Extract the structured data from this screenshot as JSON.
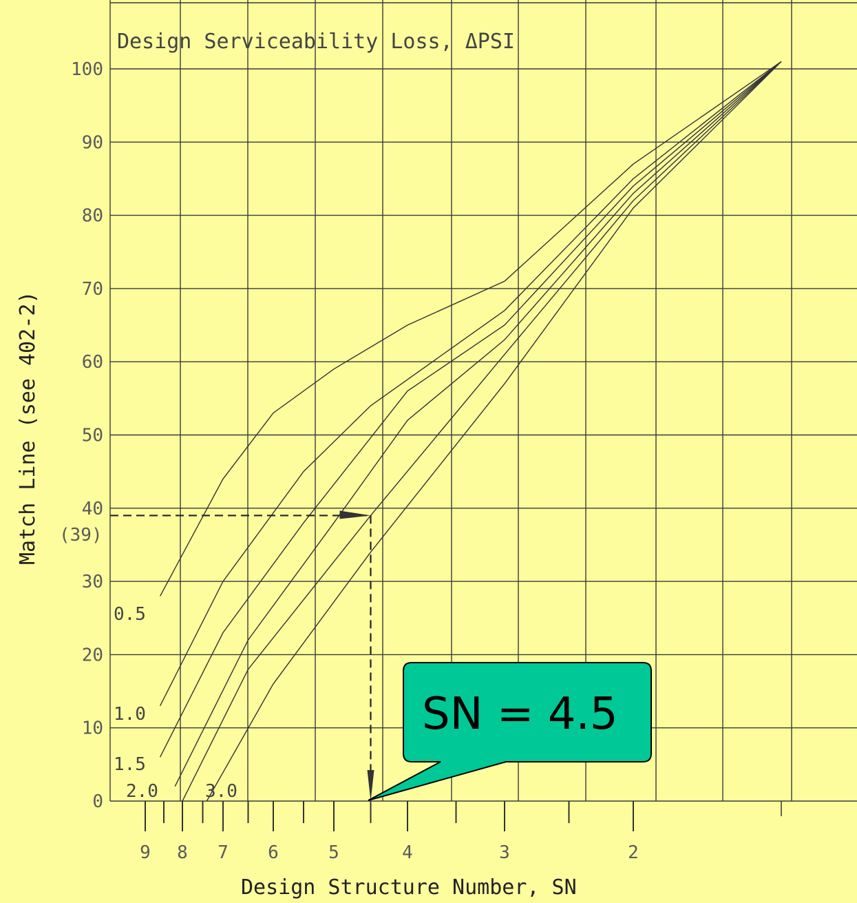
{
  "chart_data": {
    "type": "line",
    "title": "Design Serviceability Loss, ΔPSI",
    "xlabel": "Design Structure Number, SN",
    "ylabel": "Match Line (see 402-2)",
    "ylim": [
      0,
      100
    ],
    "y_ticks": [
      "0",
      "10",
      "20",
      "30",
      "40",
      "50",
      "60",
      "70",
      "80",
      "90",
      "100"
    ],
    "y_extra_label": "(39)",
    "x_ticks": [
      "9",
      "8",
      "7",
      "6",
      "5",
      "4",
      "3",
      "2"
    ],
    "x_tick_values": [
      9,
      8,
      7,
      6,
      5,
      4,
      3,
      2
    ],
    "series": [
      {
        "name": "0.5",
        "points": [
          [
            8.6,
            28
          ],
          [
            7.0,
            44
          ],
          [
            6.0,
            53
          ],
          [
            5.0,
            59
          ],
          [
            4.0,
            65
          ],
          [
            3.0,
            71
          ],
          [
            2.0,
            87
          ],
          [
            1.3,
            101
          ]
        ]
      },
      {
        "name": "1.0",
        "points": [
          [
            8.6,
            13
          ],
          [
            7.0,
            30
          ],
          [
            5.5,
            45
          ],
          [
            4.5,
            54
          ],
          [
            3.0,
            67
          ],
          [
            2.0,
            85
          ],
          [
            1.3,
            101
          ]
        ]
      },
      {
        "name": "1.5",
        "points": [
          [
            8.6,
            6
          ],
          [
            7.0,
            23
          ],
          [
            5.5,
            38
          ],
          [
            4.0,
            56
          ],
          [
            3.0,
            65
          ],
          [
            2.0,
            84
          ],
          [
            1.3,
            101
          ]
        ]
      },
      {
        "name": "2.0",
        "points": [
          [
            8.2,
            2
          ],
          [
            6.5,
            22
          ],
          [
            5.0,
            38
          ],
          [
            4.0,
            52
          ],
          [
            3.0,
            63
          ],
          [
            2.0,
            83
          ],
          [
            1.3,
            101
          ]
        ]
      },
      {
        "name": "",
        "points": [
          [
            8.0,
            0
          ],
          [
            6.5,
            18
          ],
          [
            4.5,
            39
          ],
          [
            3.0,
            61
          ],
          [
            2.0,
            82
          ],
          [
            1.3,
            101
          ]
        ]
      },
      {
        "name": "3.0",
        "points": [
          [
            7.4,
            0
          ],
          [
            6.0,
            16
          ],
          [
            4.5,
            34
          ],
          [
            3.0,
            57
          ],
          [
            2.0,
            81
          ],
          [
            1.3,
            101
          ]
        ]
      }
    ],
    "guide": {
      "y": 39,
      "sn": 4.5
    },
    "grid": true
  },
  "callout": {
    "text": "SN = 4.5"
  }
}
